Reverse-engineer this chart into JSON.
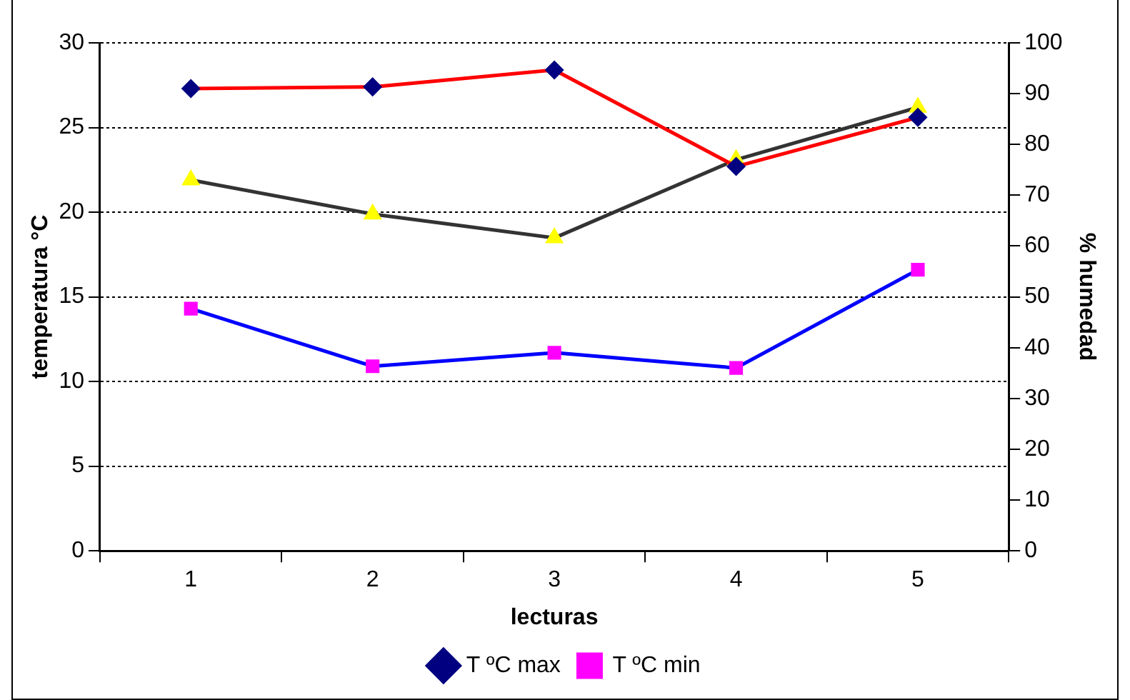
{
  "chart_data": {
    "type": "line",
    "xlabel": "lecturas",
    "ylabel": "temperatura °C",
    "y2label": "% humedad",
    "categories": [
      "1",
      "2",
      "3",
      "4",
      "5"
    ],
    "series": [
      {
        "name": "T ºC max",
        "color": "#ff0000",
        "colors": [
          "#000080",
          "#000080",
          "#000080",
          "#000080",
          "#000080"
        ],
        "marker": "diamond",
        "values": [
          27.3,
          27.4,
          28.4,
          22.7,
          25.6
        ]
      },
      {
        "name": "T ºC min",
        "color": "#0000ff",
        "colors": [
          "#ff00ff",
          "#ff00ff",
          "#ff00ff",
          "#ff00ff",
          "#ff00ff"
        ],
        "marker": "square",
        "values": [
          14.3,
          10.9,
          11.7,
          10.8,
          16.6
        ]
      },
      {
        "color": "#333333",
        "colors": [
          "#ffff00",
          "#ffff00",
          "#ffff00",
          "#ffff00",
          "#ffff00"
        ],
        "marker": "triangle",
        "axis": "y2",
        "values": [
          73.0,
          66.3,
          61.6,
          77.0,
          87.3
        ]
      }
    ],
    "ylim": [
      0,
      30
    ],
    "yticks": [
      0,
      5,
      10,
      15,
      20,
      25,
      30
    ],
    "y2lim": [
      0,
      100
    ],
    "y2ticks": [
      0,
      10,
      20,
      30,
      40,
      50,
      60,
      70,
      80,
      90,
      100
    ],
    "grid": "y",
    "legend": "bottom"
  }
}
